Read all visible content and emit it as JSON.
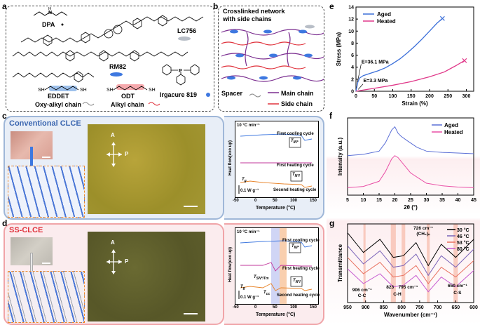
{
  "labels": {
    "a": "a",
    "b": "b",
    "c": "c",
    "d": "d",
    "e": "e",
    "f": "f",
    "g": "g"
  },
  "panel_a": {
    "dpa": "DPA",
    "lc756": "LC756",
    "rm82": "RM82",
    "eddet": "EDDET",
    "odt": "ODT",
    "oxy": "Oxy-alkyl chain",
    "alkyl": "Alkyl chain",
    "irgacure": "Irgacure 819",
    "nh": "N",
    "h": "H",
    "sh": "SH",
    "p": "P",
    "o": "O"
  },
  "panel_b": {
    "title1": "Crosslinked network",
    "title2": "with side chains",
    "spacer": "Spacer",
    "main": "Main chain",
    "side": "Side  chain"
  },
  "panel_c": {
    "title": "Conventional CLCE"
  },
  "panel_d": {
    "title": "SS-CLCE"
  },
  "optics": {
    "a": "A",
    "p": "P"
  },
  "dsc_c": {
    "rate": "10 °C min⁻¹",
    "cool": "First cooling cycle",
    "heat1": "First heating cycle",
    "heat2": "Second heating cycle",
    "tin": "T",
    "tin_sub": "IN*",
    "tni": "T",
    "tni_sub": "N*I",
    "tg": "T",
    "tg_sub": "g",
    "scale": "0.1 W g⁻¹",
    "ylabel": "Heat flow(exo up)",
    "xlabel": "Temperature (°C)",
    "ticks": [
      "-50",
      "0",
      "50",
      "100",
      "150"
    ]
  },
  "dsc_d": {
    "rate": "10 °C min⁻¹",
    "cool": "First cooling cycle",
    "heat1": "First heating cycle",
    "heat2": "Second heating cycle",
    "tin": "T",
    "tin_sub": "IN*",
    "tni": "T",
    "tni_sub": "N*I",
    "tsn": "T",
    "tsn_sub": "SN*/T",
    "tm_sub": "m",
    "tcc": "T",
    "tcc_sub": "cc",
    "tg": "T",
    "tg_sub": "g",
    "scale": "0.1 W g⁻¹",
    "ylabel": "Heat flow(exo up)",
    "xlabel": "Temperature (°C)",
    "ticks": [
      "-50",
      "0",
      "50",
      "100",
      "150"
    ]
  },
  "chart_e": {
    "type": "line",
    "xlabel": "Strain (%)",
    "ylabel": "Stress (MPa)",
    "xticks": [
      "0",
      "50",
      "100",
      "150",
      "200",
      "250",
      "300"
    ],
    "yticks": [
      "0",
      "2",
      "4",
      "6",
      "8",
      "10",
      "12",
      "14"
    ],
    "xlim": [
      0,
      320
    ],
    "ylim": [
      0,
      14
    ],
    "legend": [
      "Aged",
      "Heated"
    ],
    "e1": "E=36.1 MPa",
    "e2": "E=3.3 MPa",
    "colors": {
      "aged": "#3b6fd9",
      "heated": "#e0398a"
    }
  },
  "chart_f": {
    "type": "line",
    "xlabel": "2θ (°)",
    "ylabel": "Intensity (a.u.)",
    "xticks": [
      "5",
      "10",
      "15",
      "20",
      "25",
      "30",
      "35",
      "40",
      "45"
    ],
    "xlim": [
      5,
      45
    ],
    "legend": [
      "Aged",
      "Heated"
    ],
    "colors": {
      "aged": "#5b6fd6",
      "heated": "#e94fa6"
    }
  },
  "chart_g": {
    "type": "line",
    "xlabel": "Wavenumber (cm⁻¹)",
    "ylabel": "Transmittance",
    "xticks": [
      "950",
      "900",
      "850",
      "800",
      "750",
      "700",
      "650",
      "600"
    ],
    "xlim": [
      950,
      600
    ],
    "legend": [
      "30 °C",
      "46 °C",
      "53 °C",
      "80 °C"
    ],
    "colors": [
      "#000000",
      "#7a62b8",
      "#e8705f",
      "#c65ad0"
    ],
    "ann": {
      "a726": "726 cm⁻¹",
      "ach2": "(CH₂)ₙ",
      "a906": "906 cm⁻¹",
      "acc": "C-C",
      "a823": "823",
      "a795": "795 cm⁻¹",
      "ach": "C-H",
      "a650": "650 cm⁻¹",
      "acs": "C-S"
    }
  },
  "chart_data": [
    {
      "type": "line",
      "title": "e",
      "xlabel": "Strain (%)",
      "ylabel": "Stress (MPa)",
      "xlim": [
        0,
        320
      ],
      "ylim": [
        0,
        14
      ],
      "series": [
        {
          "name": "Aged",
          "x": [
            0,
            5,
            10,
            20,
            40,
            60,
            80,
            100,
            120,
            140,
            160,
            180,
            200,
            220,
            235
          ],
          "values": [
            0,
            1.5,
            2.2,
            2.6,
            3.0,
            3.4,
            3.9,
            4.6,
            5.4,
            6.4,
            7.5,
            8.7,
            10.0,
            11.3,
            12.1
          ]
        },
        {
          "name": "Heated",
          "x": [
            0,
            20,
            50,
            100,
            150,
            200,
            240,
            270,
            295
          ],
          "values": [
            0,
            0.2,
            0.5,
            1.0,
            1.6,
            2.4,
            3.2,
            4.2,
            5.1
          ]
        }
      ]
    },
    {
      "type": "line",
      "title": "f",
      "xlabel": "2θ (°)",
      "ylabel": "Intensity (a.u.)",
      "xlim": [
        5,
        45
      ],
      "series": [
        {
          "name": "Aged",
          "x": [
            5,
            10,
            15,
            17,
            19,
            20,
            21,
            22,
            24,
            27,
            30,
            35,
            40,
            45
          ],
          "values": [
            0.55,
            0.57,
            0.62,
            0.75,
            0.95,
            1.0,
            0.9,
            0.85,
            0.78,
            0.68,
            0.62,
            0.6,
            0.59,
            0.58
          ]
        },
        {
          "name": "Heated",
          "x": [
            5,
            10,
            15,
            17,
            19,
            20,
            21,
            23,
            25,
            30,
            35,
            40,
            45
          ],
          "values": [
            0.05,
            0.07,
            0.15,
            0.3,
            0.5,
            0.55,
            0.52,
            0.4,
            0.28,
            0.12,
            0.08,
            0.06,
            0.05
          ]
        }
      ]
    },
    {
      "type": "line",
      "title": "g",
      "xlabel": "Wavenumber (cm⁻¹)",
      "ylabel": "Transmittance",
      "xlim": [
        950,
        600
      ],
      "series": [
        {
          "name": "30 °C",
          "x": [
            950,
            906,
            860,
            823,
            795,
            760,
            726,
            690,
            650,
            600
          ],
          "values": [
            4,
            2.8,
            3.6,
            2.5,
            2.6,
            3.4,
            2.0,
            3.3,
            2.5,
            3.6
          ]
        },
        {
          "name": "46 °C",
          "x": [
            950,
            906,
            860,
            823,
            795,
            760,
            726,
            690,
            650,
            600
          ],
          "values": [
            3.2,
            2.1,
            2.9,
            1.9,
            2.0,
            2.7,
            1.4,
            2.6,
            1.9,
            3.0
          ]
        },
        {
          "name": "53 °C",
          "x": [
            950,
            906,
            860,
            823,
            795,
            760,
            726,
            690,
            650,
            600
          ],
          "values": [
            2.5,
            1.5,
            2.2,
            1.3,
            1.4,
            2.0,
            0.9,
            1.9,
            1.3,
            2.3
          ]
        },
        {
          "name": "80 °C",
          "x": [
            950,
            906,
            860,
            823,
            795,
            760,
            726,
            690,
            650,
            600
          ],
          "values": [
            1.8,
            0.9,
            1.5,
            0.7,
            0.8,
            1.4,
            0.4,
            1.3,
            0.7,
            1.7
          ]
        }
      ]
    }
  ]
}
